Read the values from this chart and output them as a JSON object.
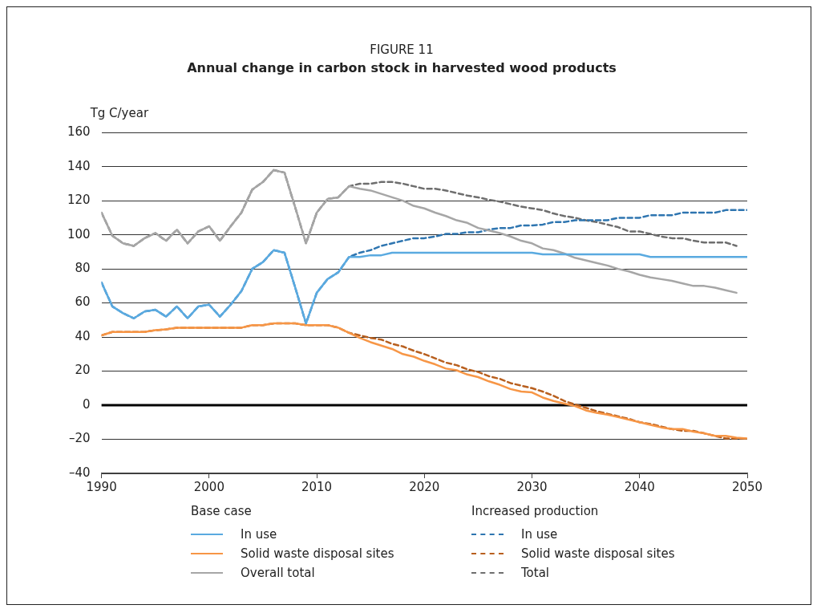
{
  "chart_data": {
    "type": "line",
    "title": "FIGURE 11",
    "subtitle": "Annual change in carbon stock in harvested wood products",
    "ylabel": "Tg C/year",
    "x": [
      1990,
      1991,
      1992,
      1993,
      1994,
      1995,
      1996,
      1997,
      1998,
      1999,
      2000,
      2001,
      2002,
      2003,
      2004,
      2005,
      2006,
      2007,
      2008,
      2009,
      2010,
      2011,
      2012,
      2013,
      2014,
      2015,
      2016,
      2017,
      2018,
      2019,
      2020,
      2021,
      2022,
      2023,
      2024,
      2025,
      2026,
      2027,
      2028,
      2029,
      2030,
      2031,
      2032,
      2033,
      2034,
      2035,
      2036,
      2037,
      2038,
      2039,
      2040,
      2041,
      2042,
      2043,
      2044,
      2045,
      2046,
      2047,
      2048,
      2049,
      2050
    ],
    "series": [
      {
        "name": "In use",
        "color": "#5aaae0",
        "line_style": "solid",
        "values": [
          72,
          58,
          54,
          51,
          55,
          56,
          52,
          58,
          51,
          58,
          59,
          52,
          59,
          67,
          80,
          84,
          91,
          89.5,
          69,
          48,
          66,
          74,
          78,
          87,
          87,
          88,
          88,
          89.5,
          89.5,
          89.5,
          89.5,
          89.5,
          89.5,
          89.5,
          89.5,
          89.5,
          89.5,
          89.5,
          89.5,
          89.5,
          89.5,
          88.5,
          88.5,
          88.5,
          88.5,
          88.5,
          88.5,
          88.5,
          88.5,
          88.5,
          88.5,
          87,
          87,
          87,
          87,
          87,
          87,
          87,
          87,
          87,
          87
        ]
      },
      {
        "name": "Solid waste disposal sites",
        "color": "#f79646",
        "line_style": "solid",
        "values": [
          41,
          43,
          43,
          43,
          43,
          44,
          44.5,
          45.5,
          45.5,
          45.5,
          45.5,
          45.5,
          45.5,
          45.5,
          47,
          47,
          48,
          48,
          48,
          47,
          47,
          47,
          45.5,
          42.5,
          39.5,
          37,
          35,
          33,
          30,
          28.5,
          26,
          24,
          21.5,
          20.5,
          18,
          16.5,
          14,
          12,
          9.5,
          8,
          7.5,
          4.5,
          2.5,
          1,
          -0.5,
          -3,
          -4.5,
          -5.5,
          -7,
          -8.5,
          -10,
          -11.5,
          -13,
          -14,
          -14,
          -15.5,
          -16.5,
          -18,
          -18,
          -19,
          -19.5
        ]
      },
      {
        "name": "Overall total",
        "color": "#a6a6a6",
        "line_style": "solid",
        "values": [
          113,
          99.5,
          95,
          93.5,
          98,
          101,
          96.5,
          103,
          95,
          102,
          105,
          96.5,
          105,
          113,
          126.5,
          131,
          138,
          136.5,
          116,
          95,
          113,
          121,
          122,
          128.5,
          127,
          126,
          124,
          122,
          120,
          117,
          115.5,
          113,
          111,
          108.5,
          107,
          104,
          102.5,
          101,
          99,
          96.5,
          95,
          92,
          91,
          89,
          86.5,
          85,
          83.5,
          82,
          80,
          78.5,
          76.5,
          75,
          74,
          73,
          71.5,
          70,
          70,
          69,
          67.5,
          66,
          null
        ]
      },
      {
        "name": "In use",
        "color": "#2e75b0",
        "line_style": "dashed",
        "values": [
          72,
          58,
          54,
          51,
          55,
          56,
          52,
          58,
          51,
          58,
          59,
          52,
          59,
          67,
          80,
          84,
          91,
          89.5,
          69,
          48,
          66,
          74,
          78,
          87,
          89.5,
          91,
          93.5,
          95,
          96.5,
          98,
          98,
          99,
          100.5,
          100.5,
          101.5,
          101.5,
          103,
          104,
          104,
          105.5,
          105.5,
          106,
          107.5,
          107.5,
          108.5,
          108.5,
          108.5,
          108.5,
          110,
          110,
          110,
          111.5,
          111.5,
          111.5,
          113,
          113,
          113,
          113,
          114.5,
          114.5,
          114.5
        ]
      },
      {
        "name": "Solid waste disposal sites",
        "color": "#b85f1e",
        "line_style": "dashed",
        "values": [
          41,
          43,
          43,
          43,
          43,
          44,
          44.5,
          45.5,
          45.5,
          45.5,
          45.5,
          45.5,
          45.5,
          45.5,
          47,
          47,
          48,
          48,
          48,
          47,
          47,
          47,
          45.5,
          42.5,
          41,
          39.5,
          38.5,
          36,
          34.5,
          32,
          30,
          27.5,
          25,
          23.5,
          21,
          19.5,
          17,
          15.5,
          13,
          11.5,
          10,
          8,
          5.5,
          2.5,
          0.5,
          -1.5,
          -3.5,
          -5,
          -6.5,
          -8,
          -10,
          -11,
          -12.5,
          -14,
          -15,
          -15,
          -16.5,
          -18,
          -19.5,
          -19.5,
          -19.5
        ]
      },
      {
        "name": "Total",
        "color": "#6e6e6e",
        "line_style": "dashed",
        "values": [
          113,
          99.5,
          95,
          93.5,
          98,
          101,
          96.5,
          103,
          95,
          102,
          105,
          96.5,
          105,
          113,
          126.5,
          131,
          138,
          136.5,
          116,
          95,
          113,
          121,
          122,
          128.5,
          130,
          130,
          131,
          131,
          130,
          128.5,
          127,
          127,
          126,
          124.5,
          123,
          122,
          120.5,
          119.5,
          118,
          116.5,
          115.5,
          114.5,
          112.5,
          111,
          110,
          108.5,
          107.5,
          106,
          104.5,
          102,
          102,
          100.5,
          99,
          98,
          98,
          96.5,
          95.5,
          95.5,
          95.5,
          93.5,
          null
        ]
      }
    ],
    "xlim": [
      1990,
      2050
    ],
    "xticks": [
      1990,
      2000,
      2010,
      2020,
      2030,
      2040,
      2050
    ],
    "ylim": [
      -40,
      160
    ],
    "yticks": [
      {
        "value": -40,
        "label": "–40"
      },
      {
        "value": -20,
        "label": "–20"
      },
      0,
      20,
      40,
      60,
      80,
      100,
      120,
      140,
      160
    ],
    "grid": "y",
    "legend": "bottom",
    "marker": "none",
    "ref_lines": [
      {
        "axis": "y",
        "value": 0,
        "color": "#000000"
      }
    ],
    "annotations": [
      "Base case",
      "Increased production"
    ]
  }
}
